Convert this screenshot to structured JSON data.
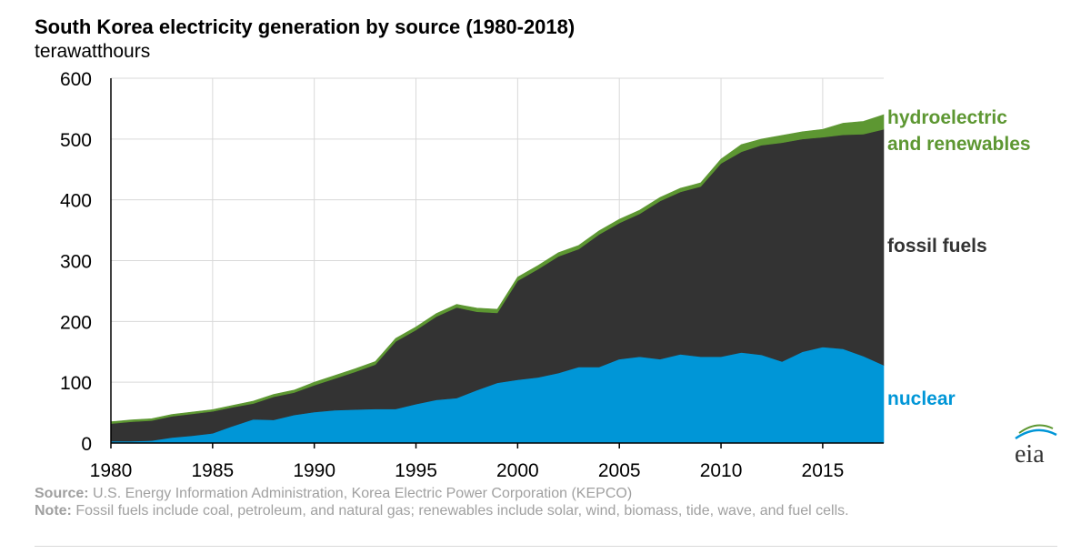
{
  "chart_data": {
    "type": "area",
    "stacked": true,
    "title": "South Korea electricity generation by source (1980-2018)",
    "ylabel": "terawatthours",
    "xlim": [
      1980,
      2018
    ],
    "ylim": [
      0,
      600
    ],
    "xticks": [
      1980,
      1985,
      1990,
      1995,
      2000,
      2005,
      2010,
      2015
    ],
    "yticks": [
      0,
      100,
      200,
      300,
      400,
      500,
      600
    ],
    "grid": true,
    "x": [
      1980,
      1981,
      1982,
      1983,
      1984,
      1985,
      1986,
      1987,
      1988,
      1989,
      1990,
      1991,
      1992,
      1993,
      1994,
      1995,
      1996,
      1997,
      1998,
      1999,
      2000,
      2001,
      2002,
      2003,
      2004,
      2005,
      2006,
      2007,
      2008,
      2009,
      2010,
      2011,
      2012,
      2013,
      2014,
      2015,
      2016,
      2017,
      2018
    ],
    "series": [
      {
        "name": "nuclear",
        "color": "#0096d7",
        "values": [
          3,
          3,
          4,
          9,
          12,
          16,
          28,
          39,
          38,
          46,
          51,
          54,
          55,
          56,
          56,
          64,
          71,
          74,
          87,
          99,
          104,
          108,
          115,
          125,
          125,
          138,
          142,
          138,
          146,
          142,
          142,
          149,
          145,
          134,
          150,
          158,
          155,
          143,
          128
        ]
      },
      {
        "name": "fossil fuels",
        "color": "#333333",
        "values": [
          29,
          32,
          33,
          35,
          36,
          36,
          31,
          26,
          38,
          37,
          44,
          52,
          62,
          73,
          111,
          122,
          137,
          149,
          129,
          115,
          163,
          178,
          192,
          194,
          218,
          224,
          235,
          260,
          267,
          280,
          318,
          330,
          345,
          360,
          350,
          345,
          352,
          365,
          388
        ]
      },
      {
        "name": "hydroelectric and renewables",
        "color": "#5d9732",
        "values": [
          3,
          3,
          3,
          3,
          3,
          3,
          3,
          4,
          4,
          4,
          5,
          5,
          5,
          5,
          5,
          5,
          5,
          5,
          6,
          6,
          6,
          6,
          6,
          6,
          6,
          6,
          6,
          6,
          6,
          6,
          7,
          12,
          10,
          12,
          12,
          13,
          19,
          21,
          24
        ]
      }
    ],
    "labels": {
      "hydro_line1": "hydroelectric",
      "hydro_line2": "and renewables",
      "fossil": "fossil fuels",
      "nuclear": "nuclear"
    },
    "logo": "eia"
  },
  "footer": {
    "source_label": "Source:",
    "source_text": " U.S. Energy Information Administration, Korea Electric Power Corporation (KEPCO)",
    "note_label": "Note:",
    "note_text": " Fossil fuels include coal, petroleum, and natural gas; renewables include solar, wind, biomass, tide, wave, and fuel cells."
  }
}
